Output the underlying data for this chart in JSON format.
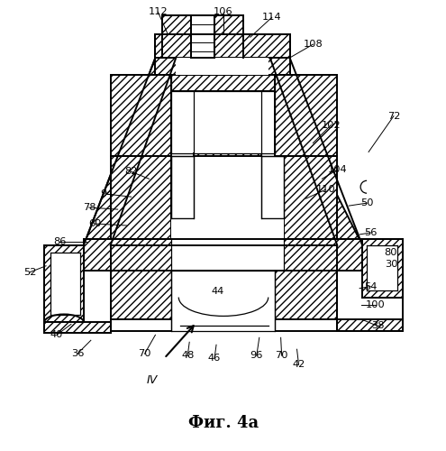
{
  "title": "Фиг. 4а",
  "bg": "#ffffff",
  "lc": "#000000",
  "labels": [
    [
      "106",
      248,
      12
    ],
    [
      "112",
      175,
      12
    ],
    [
      "114",
      300,
      18
    ],
    [
      "108",
      348,
      48
    ],
    [
      "102",
      368,
      138
    ],
    [
      "72",
      438,
      128
    ],
    [
      "104",
      375,
      188
    ],
    [
      "110",
      362,
      210
    ],
    [
      "50",
      408,
      225
    ],
    [
      "82",
      145,
      190
    ],
    [
      "94",
      118,
      215
    ],
    [
      "78",
      98,
      230
    ],
    [
      "60",
      105,
      248
    ],
    [
      "86",
      65,
      268
    ],
    [
      "52",
      32,
      302
    ],
    [
      "56",
      412,
      258
    ],
    [
      "80",
      435,
      280
    ],
    [
      "30",
      435,
      293
    ],
    [
      "54",
      412,
      318
    ],
    [
      "100",
      418,
      338
    ],
    [
      "40",
      62,
      372
    ],
    [
      "36",
      85,
      393
    ],
    [
      "70",
      160,
      393
    ],
    [
      "48",
      208,
      395
    ],
    [
      "46",
      238,
      398
    ],
    [
      "44",
      242,
      323
    ],
    [
      "96",
      285,
      395
    ],
    [
      "70",
      312,
      395
    ],
    [
      "42",
      332,
      405
    ],
    [
      "38",
      420,
      362
    ],
    [
      "IV",
      168,
      422
    ]
  ]
}
